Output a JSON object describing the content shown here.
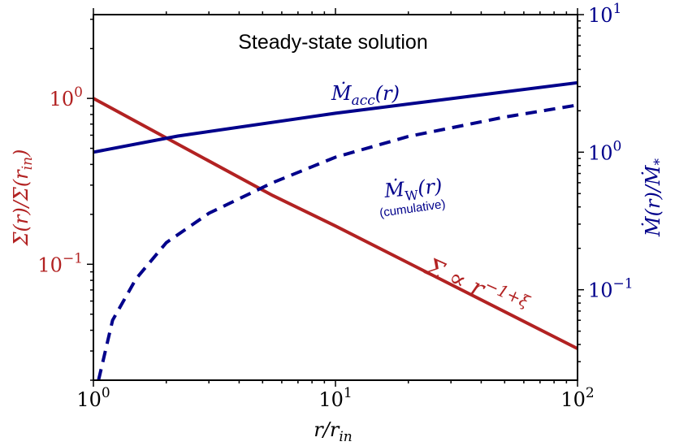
{
  "chart_data": {
    "type": "line",
    "title": "Steady-state solution",
    "xlabel": "r/r_in",
    "ylabel_left": "Σ(r)/Σ(r_in)",
    "ylabel_right": "Ṁ(r)/Ṁ_*",
    "xscale": "log",
    "yscale_left": "log",
    "yscale_right": "log",
    "xlim": [
      1,
      100
    ],
    "ylim_left": [
      0.02,
      3.2
    ],
    "ylim_right": [
      0.022,
      10
    ],
    "x_ticks": [
      "10^0",
      "10^1",
      "10^2"
    ],
    "y_ticks_left": [
      "10^0",
      "10^-1"
    ],
    "y_ticks_right": [
      "10^1",
      "10^0",
      "10^-1"
    ],
    "grid": false,
    "colors": {
      "sigma": "#b22222",
      "mdot": "#00008b"
    },
    "series": [
      {
        "axis": "left",
        "style": "solid",
        "color": "#b22222",
        "label": "Σ ∝ r^(-1+ξ)",
        "x": [
          1,
          2.23,
          5.5,
          10,
          100
        ],
        "y": [
          1.0,
          0.53,
          0.26,
          0.17,
          0.031
        ]
      },
      {
        "axis": "right",
        "style": "solid",
        "color": "#00008b",
        "label": "Ṁ_acc(r)",
        "x": [
          1,
          2.23,
          10,
          100
        ],
        "y": [
          1.0,
          1.31,
          1.92,
          3.2
        ]
      },
      {
        "axis": "right",
        "style": "dashed",
        "color": "#00008b",
        "label": "Ṁ_W(r)",
        "sublabel": "(cumulative)",
        "x": [
          1.05,
          1.2,
          1.5,
          2,
          3,
          5.5,
          10,
          20,
          50,
          100
        ],
        "y": [
          0.022,
          0.06,
          0.12,
          0.22,
          0.36,
          0.6,
          0.92,
          1.3,
          1.8,
          2.2
        ]
      }
    ]
  }
}
